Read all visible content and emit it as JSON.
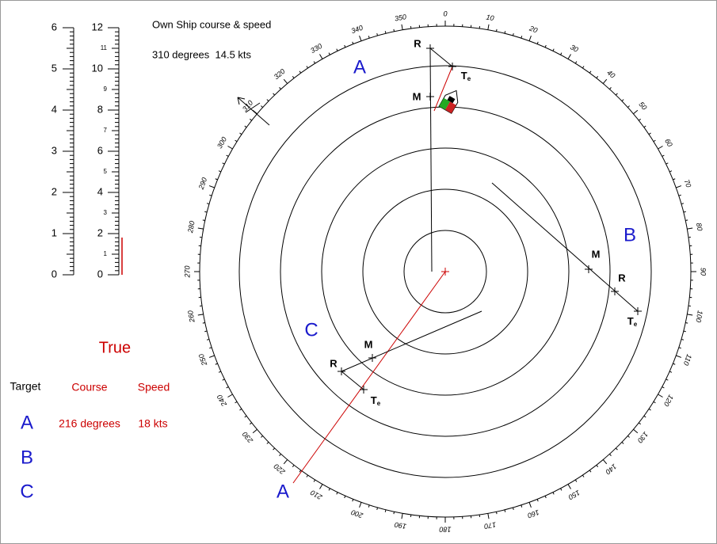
{
  "own_ship": {
    "title": "Own Ship course & speed",
    "value": "310 degrees  14.5 kts"
  },
  "scales": {
    "left": [
      0,
      1,
      2,
      3,
      4,
      5,
      6
    ],
    "right_major": [
      0,
      2,
      4,
      6,
      8,
      10,
      12
    ],
    "right_minor": [
      1,
      3,
      5,
      7,
      9,
      11
    ]
  },
  "bearings": [
    0,
    10,
    20,
    30,
    40,
    50,
    60,
    70,
    80,
    90,
    100,
    110,
    120,
    130,
    140,
    150,
    160,
    170,
    180,
    190,
    200,
    210,
    220,
    230,
    240,
    250,
    260,
    270,
    280,
    290,
    300,
    310,
    320,
    330,
    340,
    350
  ],
  "plot_labels": {
    "a_top": "A",
    "b": "B",
    "c": "C",
    "a_bottom": "A"
  },
  "markers": {
    "r": "R",
    "m": "M",
    "t": "T",
    "t_sub": "e"
  },
  "table": {
    "title": "True",
    "headers": [
      "Target",
      "Course",
      "Speed"
    ],
    "rows": [
      [
        "A",
        "216 degrees",
        "18 kts"
      ],
      [
        "B"
      ],
      [
        "C"
      ]
    ]
  }
}
